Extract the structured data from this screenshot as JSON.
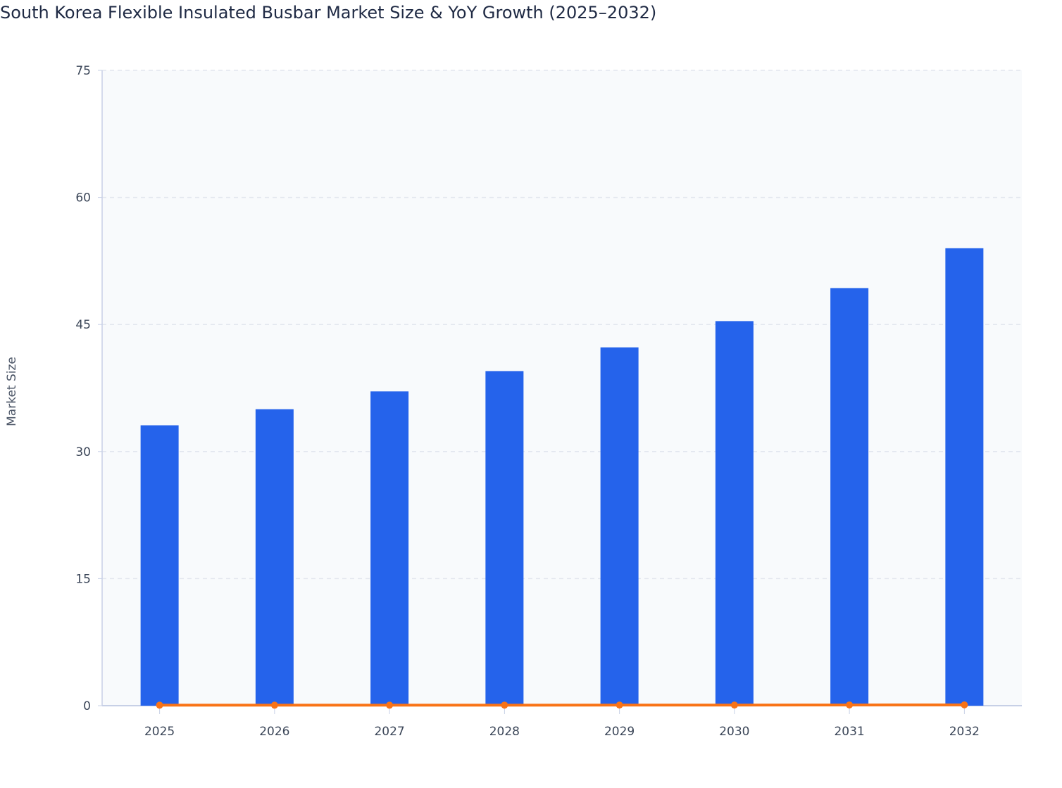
{
  "chart_data": {
    "type": "bar",
    "title": "South Korea Flexible Insulated Busbar Market Size & YoY Growth (2025–2032)",
    "xlabel": "",
    "ylabel": "Market Size",
    "ylim": [
      0,
      75
    ],
    "yticks": [
      0,
      15,
      30,
      45,
      60,
      75
    ],
    "categories": [
      "2025",
      "2026",
      "2027",
      "2028",
      "2029",
      "2030",
      "2031",
      "2032"
    ],
    "series": [
      {
        "type": "bar",
        "values": [
          33.1,
          35.0,
          37.1,
          39.5,
          42.3,
          45.4,
          49.3,
          54.0
        ],
        "color": "#2563eb"
      },
      {
        "type": "line",
        "values": [
          0.06,
          0.059,
          0.058,
          0.065,
          0.071,
          0.073,
          0.086,
          0.095
        ],
        "color": "#f97316"
      }
    ],
    "grid": true,
    "plot_background": "#f8fafc"
  }
}
